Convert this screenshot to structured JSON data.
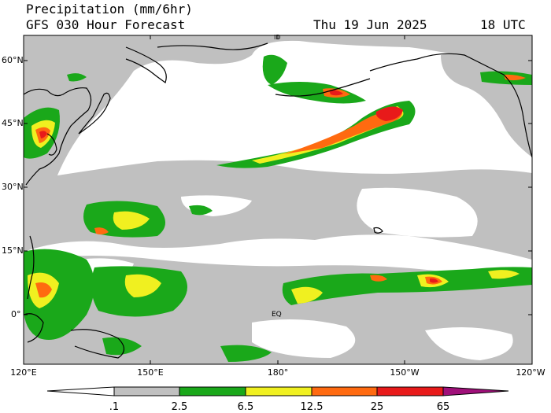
{
  "title": "Precipitation (mm/6hr)",
  "subtitle": "GFS 030 Hour Forecast",
  "valid_date": "Thu 19 Jun 2025",
  "valid_time": "18 UTC",
  "map": {
    "lat_labels": [
      "60°N",
      "45°N",
      "30°N",
      "15°N",
      "0°"
    ],
    "lon_labels": [
      "120°E",
      "150°E",
      "180°",
      "150°W",
      "120°W"
    ],
    "annotations": [
      "EQ",
      "ID"
    ],
    "colors": {
      "ocean": "#ffffff",
      "trace": "#c0c0c0",
      "light": "#1aa81a",
      "moderate": "#f0f020",
      "heavy": "#ff6a10",
      "very_heavy": "#e81a1a",
      "extreme": "#a0107a",
      "coast": "#000000"
    }
  },
  "colorbar": {
    "labels": [
      ".1",
      "2.5",
      "6.5",
      "12.5",
      "25",
      "65"
    ],
    "colors": [
      "#ffffff",
      "#c0c0c0",
      "#1aa81a",
      "#f0f020",
      "#ff6a10",
      "#e81a1a",
      "#a0107a"
    ]
  }
}
